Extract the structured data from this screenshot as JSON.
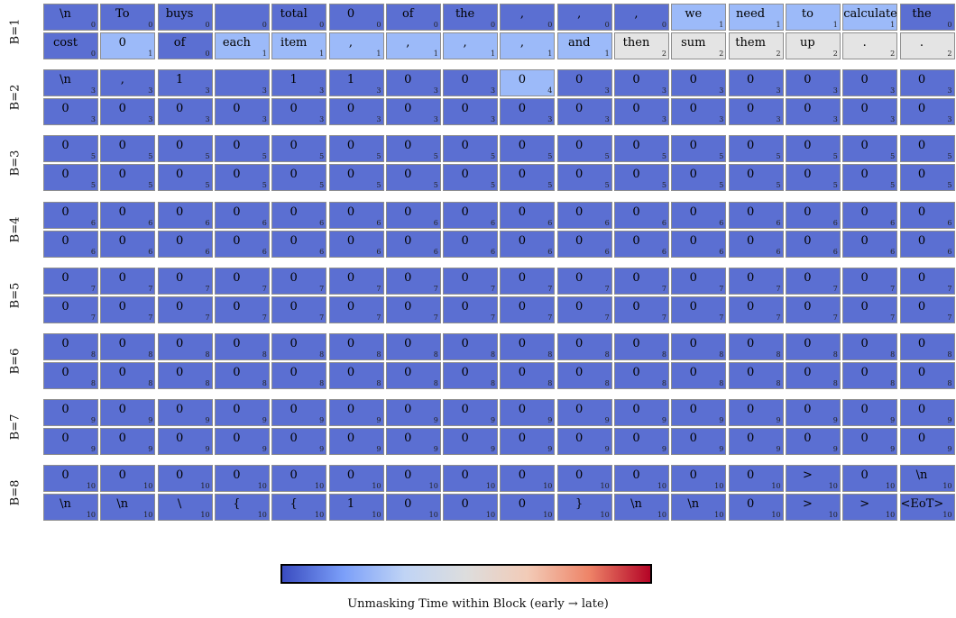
{
  "blocks": [
    {
      "label": "B=1",
      "rows": [
        [
          [
            "\\n",
            0
          ],
          [
            "To",
            0
          ],
          [
            "buys",
            0
          ],
          [
            "",
            0
          ],
          [
            "total",
            0
          ],
          [
            "0",
            0
          ],
          [
            "of",
            0
          ],
          [
            "the",
            0
          ],
          [
            ",",
            0
          ],
          [
            ",",
            0
          ],
          [
            ",",
            0
          ],
          [
            "we",
            1
          ],
          [
            "need",
            1
          ],
          [
            "to",
            1
          ],
          [
            "calculate",
            1
          ],
          [
            "the",
            0
          ]
        ],
        [
          [
            "cost",
            0
          ],
          [
            "0",
            1
          ],
          [
            "of",
            0
          ],
          [
            "each",
            1
          ],
          [
            "item",
            1
          ],
          [
            ",",
            1
          ],
          [
            ",",
            1
          ],
          [
            ",",
            1
          ],
          [
            ",",
            1
          ],
          [
            "and",
            1
          ],
          [
            "then",
            2
          ],
          [
            "sum",
            2
          ],
          [
            "them",
            2
          ],
          [
            "up",
            2
          ],
          [
            ".",
            2
          ],
          [
            ".",
            2
          ]
        ]
      ]
    },
    {
      "label": "B=2",
      "rows": [
        [
          [
            "\\n",
            3
          ],
          [
            ",",
            3
          ],
          [
            "1",
            3
          ],
          [
            "",
            3
          ],
          [
            "1",
            3
          ],
          [
            "1",
            3
          ],
          [
            "0",
            3
          ],
          [
            "0",
            3
          ],
          [
            "0",
            4
          ],
          [
            "0",
            3
          ],
          [
            "0",
            3
          ],
          [
            "0",
            3
          ],
          [
            "0",
            3
          ],
          [
            "0",
            3
          ],
          [
            "0",
            3
          ],
          [
            "0",
            3
          ]
        ],
        [
          [
            "0",
            3
          ],
          [
            "0",
            3
          ],
          [
            "0",
            3
          ],
          [
            "0",
            3
          ],
          [
            "0",
            3
          ],
          [
            "0",
            3
          ],
          [
            "0",
            3
          ],
          [
            "0",
            3
          ],
          [
            "0",
            3
          ],
          [
            "0",
            3
          ],
          [
            "0",
            3
          ],
          [
            "0",
            3
          ],
          [
            "0",
            3
          ],
          [
            "0",
            3
          ],
          [
            "0",
            3
          ],
          [
            "0",
            3
          ]
        ]
      ]
    },
    {
      "label": "B=3",
      "rows": [
        [
          [
            "0",
            5
          ],
          [
            "0",
            5
          ],
          [
            "0",
            5
          ],
          [
            "0",
            5
          ],
          [
            "0",
            5
          ],
          [
            "0",
            5
          ],
          [
            "0",
            5
          ],
          [
            "0",
            5
          ],
          [
            "0",
            5
          ],
          [
            "0",
            5
          ],
          [
            "0",
            5
          ],
          [
            "0",
            5
          ],
          [
            "0",
            5
          ],
          [
            "0",
            5
          ],
          [
            "0",
            5
          ],
          [
            "0",
            5
          ]
        ],
        [
          [
            "0",
            5
          ],
          [
            "0",
            5
          ],
          [
            "0",
            5
          ],
          [
            "0",
            5
          ],
          [
            "0",
            5
          ],
          [
            "0",
            5
          ],
          [
            "0",
            5
          ],
          [
            "0",
            5
          ],
          [
            "0",
            5
          ],
          [
            "0",
            5
          ],
          [
            "0",
            5
          ],
          [
            "0",
            5
          ],
          [
            "0",
            5
          ],
          [
            "0",
            5
          ],
          [
            "0",
            5
          ],
          [
            "0",
            5
          ]
        ]
      ]
    },
    {
      "label": "B=4",
      "rows": [
        [
          [
            "0",
            6
          ],
          [
            "0",
            6
          ],
          [
            "0",
            6
          ],
          [
            "0",
            6
          ],
          [
            "0",
            6
          ],
          [
            "0",
            6
          ],
          [
            "0",
            6
          ],
          [
            "0",
            6
          ],
          [
            "0",
            6
          ],
          [
            "0",
            6
          ],
          [
            "0",
            6
          ],
          [
            "0",
            6
          ],
          [
            "0",
            6
          ],
          [
            "0",
            6
          ],
          [
            "0",
            6
          ],
          [
            "0",
            6
          ]
        ],
        [
          [
            "0",
            6
          ],
          [
            "0",
            6
          ],
          [
            "0",
            6
          ],
          [
            "0",
            6
          ],
          [
            "0",
            6
          ],
          [
            "0",
            6
          ],
          [
            "0",
            6
          ],
          [
            "0",
            6
          ],
          [
            "0",
            6
          ],
          [
            "0",
            6
          ],
          [
            "0",
            6
          ],
          [
            "0",
            6
          ],
          [
            "0",
            6
          ],
          [
            "0",
            6
          ],
          [
            "0",
            6
          ],
          [
            "0",
            6
          ]
        ]
      ]
    },
    {
      "label": "B=5",
      "rows": [
        [
          [
            "0",
            7
          ],
          [
            "0",
            7
          ],
          [
            "0",
            7
          ],
          [
            "0",
            7
          ],
          [
            "0",
            7
          ],
          [
            "0",
            7
          ],
          [
            "0",
            7
          ],
          [
            "0",
            7
          ],
          [
            "0",
            7
          ],
          [
            "0",
            7
          ],
          [
            "0",
            7
          ],
          [
            "0",
            7
          ],
          [
            "0",
            7
          ],
          [
            "0",
            7
          ],
          [
            "0",
            7
          ],
          [
            "0",
            7
          ]
        ],
        [
          [
            "0",
            7
          ],
          [
            "0",
            7
          ],
          [
            "0",
            7
          ],
          [
            "0",
            7
          ],
          [
            "0",
            7
          ],
          [
            "0",
            7
          ],
          [
            "0",
            7
          ],
          [
            "0",
            7
          ],
          [
            "0",
            7
          ],
          [
            "0",
            7
          ],
          [
            "0",
            7
          ],
          [
            "0",
            7
          ],
          [
            "0",
            7
          ],
          [
            "0",
            7
          ],
          [
            "0",
            7
          ],
          [
            "0",
            7
          ]
        ]
      ]
    },
    {
      "label": "B=6",
      "rows": [
        [
          [
            "0",
            8
          ],
          [
            "0",
            8
          ],
          [
            "0",
            8
          ],
          [
            "0",
            8
          ],
          [
            "0",
            8
          ],
          [
            "0",
            8
          ],
          [
            "0",
            8
          ],
          [
            "0",
            8
          ],
          [
            "0",
            8
          ],
          [
            "0",
            8
          ],
          [
            "0",
            8
          ],
          [
            "0",
            8
          ],
          [
            "0",
            8
          ],
          [
            "0",
            8
          ],
          [
            "0",
            8
          ],
          [
            "0",
            8
          ]
        ],
        [
          [
            "0",
            8
          ],
          [
            "0",
            8
          ],
          [
            "0",
            8
          ],
          [
            "0",
            8
          ],
          [
            "0",
            8
          ],
          [
            "0",
            8
          ],
          [
            "0",
            8
          ],
          [
            "0",
            8
          ],
          [
            "0",
            8
          ],
          [
            "0",
            8
          ],
          [
            "0",
            8
          ],
          [
            "0",
            8
          ],
          [
            "0",
            8
          ],
          [
            "0",
            8
          ],
          [
            "0",
            8
          ],
          [
            "0",
            8
          ]
        ]
      ]
    },
    {
      "label": "B=7",
      "rows": [
        [
          [
            "0",
            9
          ],
          [
            "0",
            9
          ],
          [
            "0",
            9
          ],
          [
            "0",
            9
          ],
          [
            "0",
            9
          ],
          [
            "0",
            9
          ],
          [
            "0",
            9
          ],
          [
            "0",
            9
          ],
          [
            "0",
            9
          ],
          [
            "0",
            9
          ],
          [
            "0",
            9
          ],
          [
            "0",
            9
          ],
          [
            "0",
            9
          ],
          [
            "0",
            9
          ],
          [
            "0",
            9
          ],
          [
            "0",
            9
          ]
        ],
        [
          [
            "0",
            9
          ],
          [
            "0",
            9
          ],
          [
            "0",
            9
          ],
          [
            "0",
            9
          ],
          [
            "0",
            9
          ],
          [
            "0",
            9
          ],
          [
            "0",
            9
          ],
          [
            "0",
            9
          ],
          [
            "0",
            9
          ],
          [
            "0",
            9
          ],
          [
            "0",
            9
          ],
          [
            "0",
            9
          ],
          [
            "0",
            9
          ],
          [
            "0",
            9
          ],
          [
            "0",
            9
          ],
          [
            "0",
            9
          ]
        ]
      ]
    },
    {
      "label": "B=8",
      "rows": [
        [
          [
            "0",
            10
          ],
          [
            "0",
            10
          ],
          [
            "0",
            10
          ],
          [
            "0",
            10
          ],
          [
            "0",
            10
          ],
          [
            "0",
            10
          ],
          [
            "0",
            10
          ],
          [
            "0",
            10
          ],
          [
            "0",
            10
          ],
          [
            "0",
            10
          ],
          [
            "0",
            10
          ],
          [
            "0",
            10
          ],
          [
            "0",
            10
          ],
          [
            ">",
            10
          ],
          [
            "0",
            10
          ],
          [
            "\\n",
            10
          ]
        ],
        [
          [
            "\\n",
            10
          ],
          [
            "\\n",
            10
          ],
          [
            "\\",
            10
          ],
          [
            "{",
            10
          ],
          [
            "{",
            10
          ],
          [
            "1",
            10
          ],
          [
            "0",
            10
          ],
          [
            "0",
            10
          ],
          [
            "0",
            10
          ],
          [
            "}",
            10
          ],
          [
            "\\n",
            10
          ],
          [
            "\\n",
            10
          ],
          [
            "0",
            10
          ],
          [
            ">",
            10
          ],
          [
            ">",
            10
          ],
          [
            "<EoT>",
            10
          ]
        ]
      ]
    }
  ],
  "cell_colors": {
    "earliest": "#5b6fd2",
    "early": "#9cbaf9",
    "mid": "#e4e4e4"
  },
  "colorbar": {
    "label": "Unmasking Time within Block (early → late)",
    "colors": [
      "#3a4cc0",
      "#7b9ff9",
      "#c0d4f5",
      "#dddddd",
      "#f2cbb7",
      "#ee8468",
      "#b40426"
    ]
  }
}
